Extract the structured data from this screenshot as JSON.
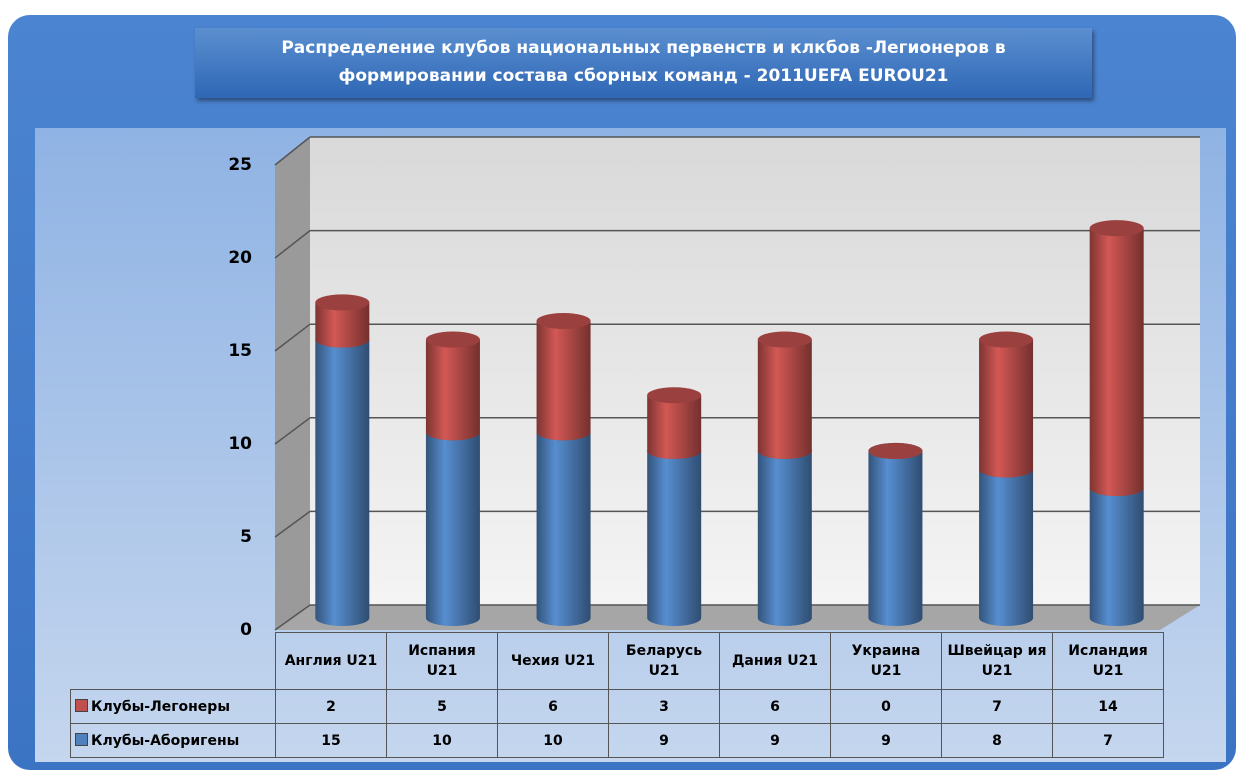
{
  "chart_data": {
    "type": "bar3d_stacked",
    "title": "Распределение клубов национальных первенств и клкбов -Легионеров в формировании состава сборных команд -  2011UEFA EUROU21",
    "categories": [
      "Англия U21",
      "Испания U21",
      "Чехия U21",
      "Беларусь U21",
      "Дания U21",
      "Украина U21",
      "Швейцар ия U21",
      "Исландия U21"
    ],
    "series": [
      {
        "name": "Клубы-Легонеры",
        "color": "#c0504d",
        "values": [
          2,
          5,
          6,
          3,
          6,
          0,
          7,
          14
        ]
      },
      {
        "name": "Клубы-Аборигены",
        "color": "#4f81bd",
        "values": [
          15,
          10,
          10,
          9,
          9,
          9,
          8,
          7
        ]
      }
    ],
    "ylim": [
      0,
      25
    ],
    "yticks": [
      0,
      5,
      10,
      15,
      20,
      25
    ],
    "grid": true,
    "data_table": true
  }
}
